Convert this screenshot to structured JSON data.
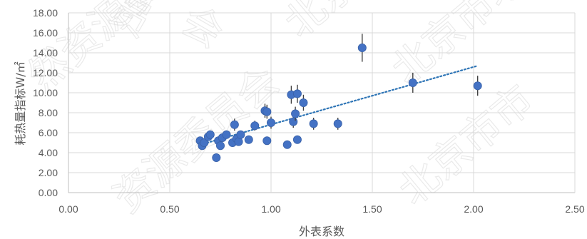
{
  "chart_data": {
    "type": "scatter",
    "xlabel": "外表系数",
    "ylabel": "耗热量指标W/㎡",
    "xlim": [
      0,
      2.5
    ],
    "ylim": [
      0,
      18
    ],
    "x_ticks": [
      "0.00",
      "0.50",
      "1.00",
      "1.50",
      "2.00",
      "2.50"
    ],
    "y_ticks": [
      "0.00",
      "2.00",
      "4.00",
      "6.00",
      "8.00",
      "10.00",
      "12.00",
      "14.00",
      "16.00",
      "18.00"
    ],
    "grid": true,
    "legend": "none",
    "marker_color": "#4472C4",
    "trendline": {
      "type": "linear",
      "style": "dotted",
      "color": "#2E75B6",
      "x": [
        0.65,
        2.02
      ],
      "y": [
        4.8,
        12.7
      ]
    },
    "points": [
      {
        "x": 0.65,
        "y": 5.2,
        "err": 0.4
      },
      {
        "x": 0.66,
        "y": 4.7,
        "err": 0.4
      },
      {
        "x": 0.67,
        "y": 5.0,
        "err": 0.4
      },
      {
        "x": 0.69,
        "y": 5.6,
        "err": 0.4
      },
      {
        "x": 0.7,
        "y": 5.8,
        "err": 0.4
      },
      {
        "x": 0.73,
        "y": 3.5,
        "err": 0.3
      },
      {
        "x": 0.74,
        "y": 5.2,
        "err": 0.4
      },
      {
        "x": 0.75,
        "y": 4.7,
        "err": 0.4
      },
      {
        "x": 0.76,
        "y": 5.5,
        "err": 0.4
      },
      {
        "x": 0.78,
        "y": 5.8,
        "err": 0.4
      },
      {
        "x": 0.81,
        "y": 5.0,
        "err": 0.4
      },
      {
        "x": 0.82,
        "y": 6.8,
        "err": 0.6
      },
      {
        "x": 0.83,
        "y": 5.4,
        "err": 0.4
      },
      {
        "x": 0.84,
        "y": 5.1,
        "err": 0.4
      },
      {
        "x": 0.85,
        "y": 5.8,
        "err": 0.4
      },
      {
        "x": 0.89,
        "y": 5.3,
        "err": 0.4
      },
      {
        "x": 0.92,
        "y": 6.7,
        "err": 0.5
      },
      {
        "x": 0.97,
        "y": 8.2,
        "err": 0.7
      },
      {
        "x": 0.98,
        "y": 8.1,
        "err": 0.7
      },
      {
        "x": 0.98,
        "y": 5.2,
        "err": 0.4
      },
      {
        "x": 1.0,
        "y": 7.0,
        "err": 0.6
      },
      {
        "x": 1.08,
        "y": 4.8,
        "err": 0.4
      },
      {
        "x": 1.1,
        "y": 9.8,
        "err": 0.9
      },
      {
        "x": 1.11,
        "y": 7.1,
        "err": 0.6
      },
      {
        "x": 1.12,
        "y": 7.9,
        "err": 0.7
      },
      {
        "x": 1.13,
        "y": 9.9,
        "err": 0.9
      },
      {
        "x": 1.13,
        "y": 5.3,
        "err": 0.4
      },
      {
        "x": 1.16,
        "y": 9.0,
        "err": 0.8
      },
      {
        "x": 1.21,
        "y": 6.9,
        "err": 0.6
      },
      {
        "x": 1.33,
        "y": 6.9,
        "err": 0.6
      },
      {
        "x": 1.45,
        "y": 14.5,
        "err": 1.4
      },
      {
        "x": 1.7,
        "y": 11.0,
        "err": 1.0
      },
      {
        "x": 2.02,
        "y": 10.7,
        "err": 1.0
      }
    ]
  },
  "watermark": {
    "fragments": [
      "员",
      "会",
      "北京市",
      "然资源委",
      "北京市场监督",
      "资源委员会",
      "北京市市"
    ]
  }
}
